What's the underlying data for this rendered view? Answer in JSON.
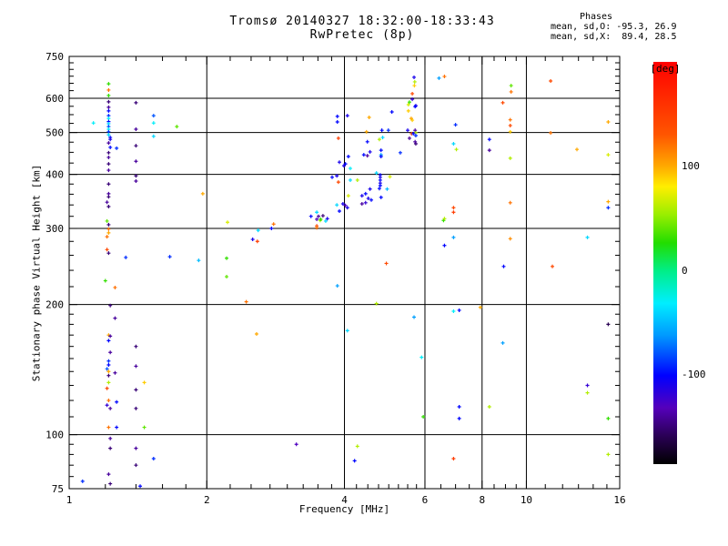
{
  "title": {
    "line1": "Tromsø 20140327 18:32:00-18:33:43",
    "line2": "RwPretec (8p)"
  },
  "stats": {
    "header": "Phases",
    "o_mode": "mean, sd,O: -95.3, 26.9",
    "x_mode": "mean, sd,X:  89.4, 28.5"
  },
  "chart_data": {
    "type": "scatter",
    "xlabel": "Frequency [MHz]",
    "ylabel": "Stationary phase Virtual Height [km]",
    "x_scale": "log",
    "y_scale": "log",
    "xlim": [
      1,
      16
    ],
    "ylim": [
      75,
      750
    ],
    "grid": true,
    "x_major_ticks": [
      1,
      2,
      4,
      6,
      8,
      10,
      16
    ],
    "x_minor_ticks": [
      1.2,
      1.4,
      1.6,
      1.8,
      2.25,
      2.5,
      2.75,
      3,
      3.25,
      3.5,
      3.75,
      4.25,
      4.5,
      4.75,
      5,
      5.25,
      5.5,
      5.75,
      6.5,
      7,
      7.5,
      8.5,
      9,
      9.5,
      11,
      12,
      13,
      14,
      15
    ],
    "x_grid": [
      2,
      4,
      6,
      8,
      10
    ],
    "y_major_ticks": [
      75,
      100,
      200,
      300,
      400,
      500,
      600,
      750
    ],
    "y_minor_ticks": [
      80,
      85,
      90,
      95,
      110,
      120,
      130,
      140,
      150,
      160,
      170,
      180,
      190,
      220,
      240,
      260,
      280,
      320,
      340,
      360,
      380,
      425,
      450,
      475,
      525,
      550,
      575,
      625,
      650,
      675,
      700,
      725
    ],
    "y_grid": [
      100,
      200,
      300,
      400,
      500,
      600
    ],
    "colorbar": {
      "label": "[deg]",
      "unit": "deg",
      "ticks": [
        100,
        0,
        -100
      ],
      "gradient": [
        [
          0.0,
          "#ff0000"
        ],
        [
          0.18,
          "#ff5500"
        ],
        [
          0.26,
          "#ffaa00"
        ],
        [
          0.31,
          "#ffee00"
        ],
        [
          0.38,
          "#99ee00"
        ],
        [
          0.45,
          "#22dd00"
        ],
        [
          0.52,
          "#00ee88"
        ],
        [
          0.6,
          "#00eeff"
        ],
        [
          0.68,
          "#0099ff"
        ],
        [
          0.78,
          "#0000ff"
        ],
        [
          0.86,
          "#5500bb"
        ],
        [
          0.93,
          "#2a0055"
        ],
        [
          1.0,
          "#000000"
        ]
      ]
    },
    "points_format": [
      "freq_MHz",
      "virtual_height_km",
      "phase_deg"
    ],
    "points": [
      [
        1.22,
        648,
        30
      ],
      [
        1.22,
        627,
        120
      ],
      [
        1.22,
        609,
        30
      ],
      [
        1.22,
        589,
        -150
      ],
      [
        1.22,
        572,
        -140
      ],
      [
        1.22,
        561,
        -100
      ],
      [
        1.22,
        547,
        -90
      ],
      [
        1.22,
        539,
        -30
      ],
      [
        1.22,
        530,
        -100
      ],
      [
        1.13,
        526,
        -30
      ],
      [
        1.22,
        524,
        -40
      ],
      [
        1.22,
        516,
        -80
      ],
      [
        1.22,
        509,
        -30
      ],
      [
        1.22,
        502,
        -90
      ],
      [
        1.22,
        494,
        -40
      ],
      [
        1.23,
        487,
        -100
      ],
      [
        1.23,
        482,
        -110
      ],
      [
        1.22,
        473,
        -140
      ],
      [
        1.23,
        462,
        -100
      ],
      [
        1.27,
        460,
        -90
      ],
      [
        1.22,
        449,
        -150
      ],
      [
        1.22,
        438,
        -140
      ],
      [
        1.22,
        423,
        -150
      ],
      [
        1.22,
        409,
        -140
      ],
      [
        1.22,
        380,
        -150
      ],
      [
        1.22,
        361,
        -140
      ],
      [
        1.22,
        355,
        -150
      ],
      [
        1.21,
        345,
        -140
      ],
      [
        1.22,
        337,
        -150
      ],
      [
        1.21,
        312,
        40
      ],
      [
        1.22,
        306,
        -150
      ],
      [
        1.22,
        299,
        120
      ],
      [
        1.22,
        293,
        100
      ],
      [
        1.21,
        287,
        120
      ],
      [
        1.21,
        268,
        140
      ],
      [
        1.22,
        263,
        -150
      ],
      [
        1.33,
        257,
        -90
      ],
      [
        1.4,
        586,
        -150
      ],
      [
        1.4,
        509,
        -140
      ],
      [
        1.4,
        466,
        -150
      ],
      [
        1.4,
        429,
        -140
      ],
      [
        1.4,
        397,
        -150
      ],
      [
        1.4,
        386,
        -140
      ],
      [
        1.53,
        547,
        -80
      ],
      [
        1.53,
        526,
        -30
      ],
      [
        1.53,
        490,
        -40
      ],
      [
        1.72,
        516,
        40
      ],
      [
        1.96,
        361,
        100
      ],
      [
        1.66,
        258,
        -90
      ],
      [
        1.92,
        253,
        -50
      ],
      [
        1.2,
        227,
        30
      ],
      [
        1.26,
        219,
        120
      ],
      [
        1.23,
        199,
        -150
      ],
      [
        1.26,
        186,
        -140
      ],
      [
        1.22,
        170,
        100
      ],
      [
        1.23,
        169,
        -140
      ],
      [
        1.22,
        165,
        -100
      ],
      [
        1.4,
        160,
        -150
      ],
      [
        1.23,
        155,
        -140
      ],
      [
        1.22,
        148,
        -90
      ],
      [
        1.22,
        145,
        -100
      ],
      [
        1.21,
        142,
        -80
      ],
      [
        1.22,
        140,
        100
      ],
      [
        1.26,
        139,
        -140
      ],
      [
        1.22,
        137,
        -150
      ],
      [
        1.4,
        144,
        -140
      ],
      [
        1.22,
        132,
        60
      ],
      [
        1.21,
        128,
        140
      ],
      [
        1.4,
        127,
        -150
      ],
      [
        1.46,
        132,
        90
      ],
      [
        1.22,
        120,
        120
      ],
      [
        1.27,
        119,
        -100
      ],
      [
        1.21,
        117,
        -120
      ],
      [
        1.23,
        115,
        -140
      ],
      [
        1.4,
        115,
        -150
      ],
      [
        1.22,
        104,
        120
      ],
      [
        1.27,
        104,
        -100
      ],
      [
        1.46,
        104,
        40
      ],
      [
        1.23,
        98,
        -140
      ],
      [
        1.23,
        93,
        -150
      ],
      [
        1.4,
        93,
        -140
      ],
      [
        1.53,
        88,
        -90
      ],
      [
        1.4,
        85,
        -150
      ],
      [
        1.22,
        81,
        -140
      ],
      [
        1.07,
        78,
        -90
      ],
      [
        1.23,
        77,
        -150
      ],
      [
        1.43,
        76,
        -100
      ],
      [
        5.63,
        615,
        140
      ],
      [
        5.52,
        580,
        70
      ],
      [
        5.73,
        577,
        -110
      ],
      [
        5.52,
        561,
        90
      ],
      [
        5.08,
        558,
        -100
      ],
      [
        3.86,
        545,
        -100
      ],
      [
        4.06,
        547,
        -110
      ],
      [
        3.86,
        529,
        -100
      ],
      [
        4.53,
        542,
        100
      ],
      [
        5.63,
        534,
        90
      ],
      [
        5.5,
        506,
        -110
      ],
      [
        4.83,
        506,
        -100
      ],
      [
        4.99,
        506,
        -90
      ],
      [
        5.71,
        506,
        -140
      ],
      [
        5.73,
        499,
        60
      ],
      [
        4.47,
        502,
        100
      ],
      [
        3.88,
        485,
        150
      ],
      [
        4.77,
        482,
        60
      ],
      [
        4.85,
        487,
        -40
      ],
      [
        4.49,
        476,
        -100
      ],
      [
        4.55,
        451,
        -110
      ],
      [
        4.41,
        444,
        -100
      ],
      [
        4.49,
        442,
        -140
      ],
      [
        4.81,
        455,
        -100
      ],
      [
        4.81,
        444,
        -60
      ],
      [
        4.81,
        440,
        -100
      ],
      [
        5.3,
        449,
        -90
      ],
      [
        5.55,
        485,
        -140
      ],
      [
        5.73,
        471,
        -150
      ],
      [
        4.08,
        440,
        -100
      ],
      [
        3.9,
        427,
        -110
      ],
      [
        4.02,
        423,
        -100
      ],
      [
        3.99,
        419,
        -110
      ],
      [
        4.12,
        413,
        -30
      ],
      [
        3.76,
        394,
        -100
      ],
      [
        3.85,
        397,
        -110
      ],
      [
        3.88,
        384,
        140
      ],
      [
        4.12,
        388,
        -40
      ],
      [
        4.27,
        388,
        60
      ],
      [
        4.7,
        403,
        -40
      ],
      [
        4.79,
        399,
        -100
      ],
      [
        4.79,
        394,
        -110
      ],
      [
        4.79,
        388,
        -100
      ],
      [
        4.79,
        382,
        -110
      ],
      [
        4.79,
        377,
        -100
      ],
      [
        5.03,
        395,
        70
      ],
      [
        4.77,
        371,
        -100
      ],
      [
        4.96,
        370,
        -50
      ],
      [
        4.55,
        370,
        -110
      ],
      [
        4.81,
        354,
        -100
      ],
      [
        4.37,
        357,
        -110
      ],
      [
        4.45,
        361,
        -100
      ],
      [
        4.51,
        352,
        -110
      ],
      [
        4.58,
        349,
        -100
      ],
      [
        4.08,
        357,
        70
      ],
      [
        4.37,
        342,
        -140
      ],
      [
        4.45,
        344,
        -120
      ],
      [
        3.85,
        340,
        -40
      ],
      [
        3.97,
        342,
        -110
      ],
      [
        4.02,
        339,
        -130
      ],
      [
        4.06,
        335,
        -110
      ],
      [
        3.9,
        329,
        -100
      ],
      [
        3.48,
        327,
        -40
      ],
      [
        3.38,
        320,
        -100
      ],
      [
        3.51,
        320,
        -140
      ],
      [
        3.59,
        321,
        -150
      ],
      [
        3.67,
        316,
        -110
      ],
      [
        3.54,
        313,
        60
      ],
      [
        3.48,
        304,
        140
      ],
      [
        6.59,
        313,
        30
      ],
      [
        5.68,
        671,
        -110
      ],
      [
        5.7,
        655,
        60
      ],
      [
        5.69,
        642,
        90
      ],
      [
        6.44,
        668,
        -60
      ],
      [
        6.62,
        674,
        120
      ],
      [
        11.3,
        658,
        140
      ],
      [
        9.26,
        642,
        40
      ],
      [
        9.26,
        621,
        120
      ],
      [
        5.63,
        597,
        -120
      ],
      [
        5.55,
        588,
        30
      ],
      [
        5.71,
        574,
        -100
      ],
      [
        8.88,
        586,
        140
      ],
      [
        5.6,
        539,
        100
      ],
      [
        7.0,
        521,
        -90
      ],
      [
        9.22,
        535,
        120
      ],
      [
        9.22,
        519,
        140
      ],
      [
        15.1,
        529,
        100
      ],
      [
        9.22,
        502,
        90
      ],
      [
        11.3,
        499,
        120
      ],
      [
        5.61,
        497,
        140
      ],
      [
        5.66,
        497,
        -100
      ],
      [
        5.73,
        492,
        -90
      ],
      [
        5.71,
        476,
        -140
      ],
      [
        8.3,
        482,
        -100
      ],
      [
        6.93,
        471,
        -40
      ],
      [
        8.3,
        455,
        -140
      ],
      [
        7.03,
        457,
        60
      ],
      [
        12.9,
        457,
        100
      ],
      [
        15.1,
        444,
        70
      ],
      [
        9.22,
        436,
        60
      ],
      [
        9.22,
        344,
        120
      ],
      [
        6.93,
        335,
        140
      ],
      [
        6.93,
        327,
        150
      ],
      [
        6.62,
        316,
        60
      ],
      [
        15.1,
        346,
        100
      ],
      [
        15.1,
        335,
        -90
      ],
      [
        6.93,
        286,
        -60
      ],
      [
        6.62,
        274,
        -100
      ],
      [
        9.22,
        284,
        110
      ],
      [
        13.6,
        286,
        -40
      ],
      [
        8.92,
        245,
        -100
      ],
      [
        11.4,
        245,
        140
      ],
      [
        2.22,
        310,
        70
      ],
      [
        2.8,
        307,
        120
      ],
      [
        3.48,
        315,
        -130
      ],
      [
        3.55,
        315,
        30
      ],
      [
        3.64,
        312,
        -40
      ],
      [
        2.59,
        297,
        -40
      ],
      [
        2.77,
        300,
        -100
      ],
      [
        3.48,
        301,
        120
      ],
      [
        2.52,
        283,
        -110
      ],
      [
        2.58,
        280,
        150
      ],
      [
        2.21,
        256,
        30
      ],
      [
        2.21,
        232,
        40
      ],
      [
        4.94,
        249,
        140
      ],
      [
        3.86,
        221,
        -60
      ],
      [
        4.7,
        201,
        60
      ],
      [
        2.44,
        203,
        120
      ],
      [
        5.68,
        187,
        -60
      ],
      [
        4.06,
        174,
        -40
      ],
      [
        2.57,
        171,
        100
      ],
      [
        5.9,
        151,
        -30
      ],
      [
        5.95,
        110,
        30
      ],
      [
        3.14,
        95,
        -130
      ],
      [
        4.27,
        94,
        60
      ],
      [
        4.21,
        87,
        -100
      ],
      [
        6.93,
        193,
        -30
      ],
      [
        7.13,
        194,
        -100
      ],
      [
        7.93,
        197,
        100
      ],
      [
        15.1,
        180,
        -160
      ],
      [
        8.88,
        163,
        -60
      ],
      [
        13.6,
        130,
        -120
      ],
      [
        13.6,
        125,
        60
      ],
      [
        7.13,
        116,
        -100
      ],
      [
        8.3,
        116,
        60
      ],
      [
        7.13,
        109,
        -100
      ],
      [
        15.1,
        109,
        30
      ],
      [
        6.93,
        88,
        150
      ],
      [
        15.1,
        90,
        60
      ]
    ]
  }
}
